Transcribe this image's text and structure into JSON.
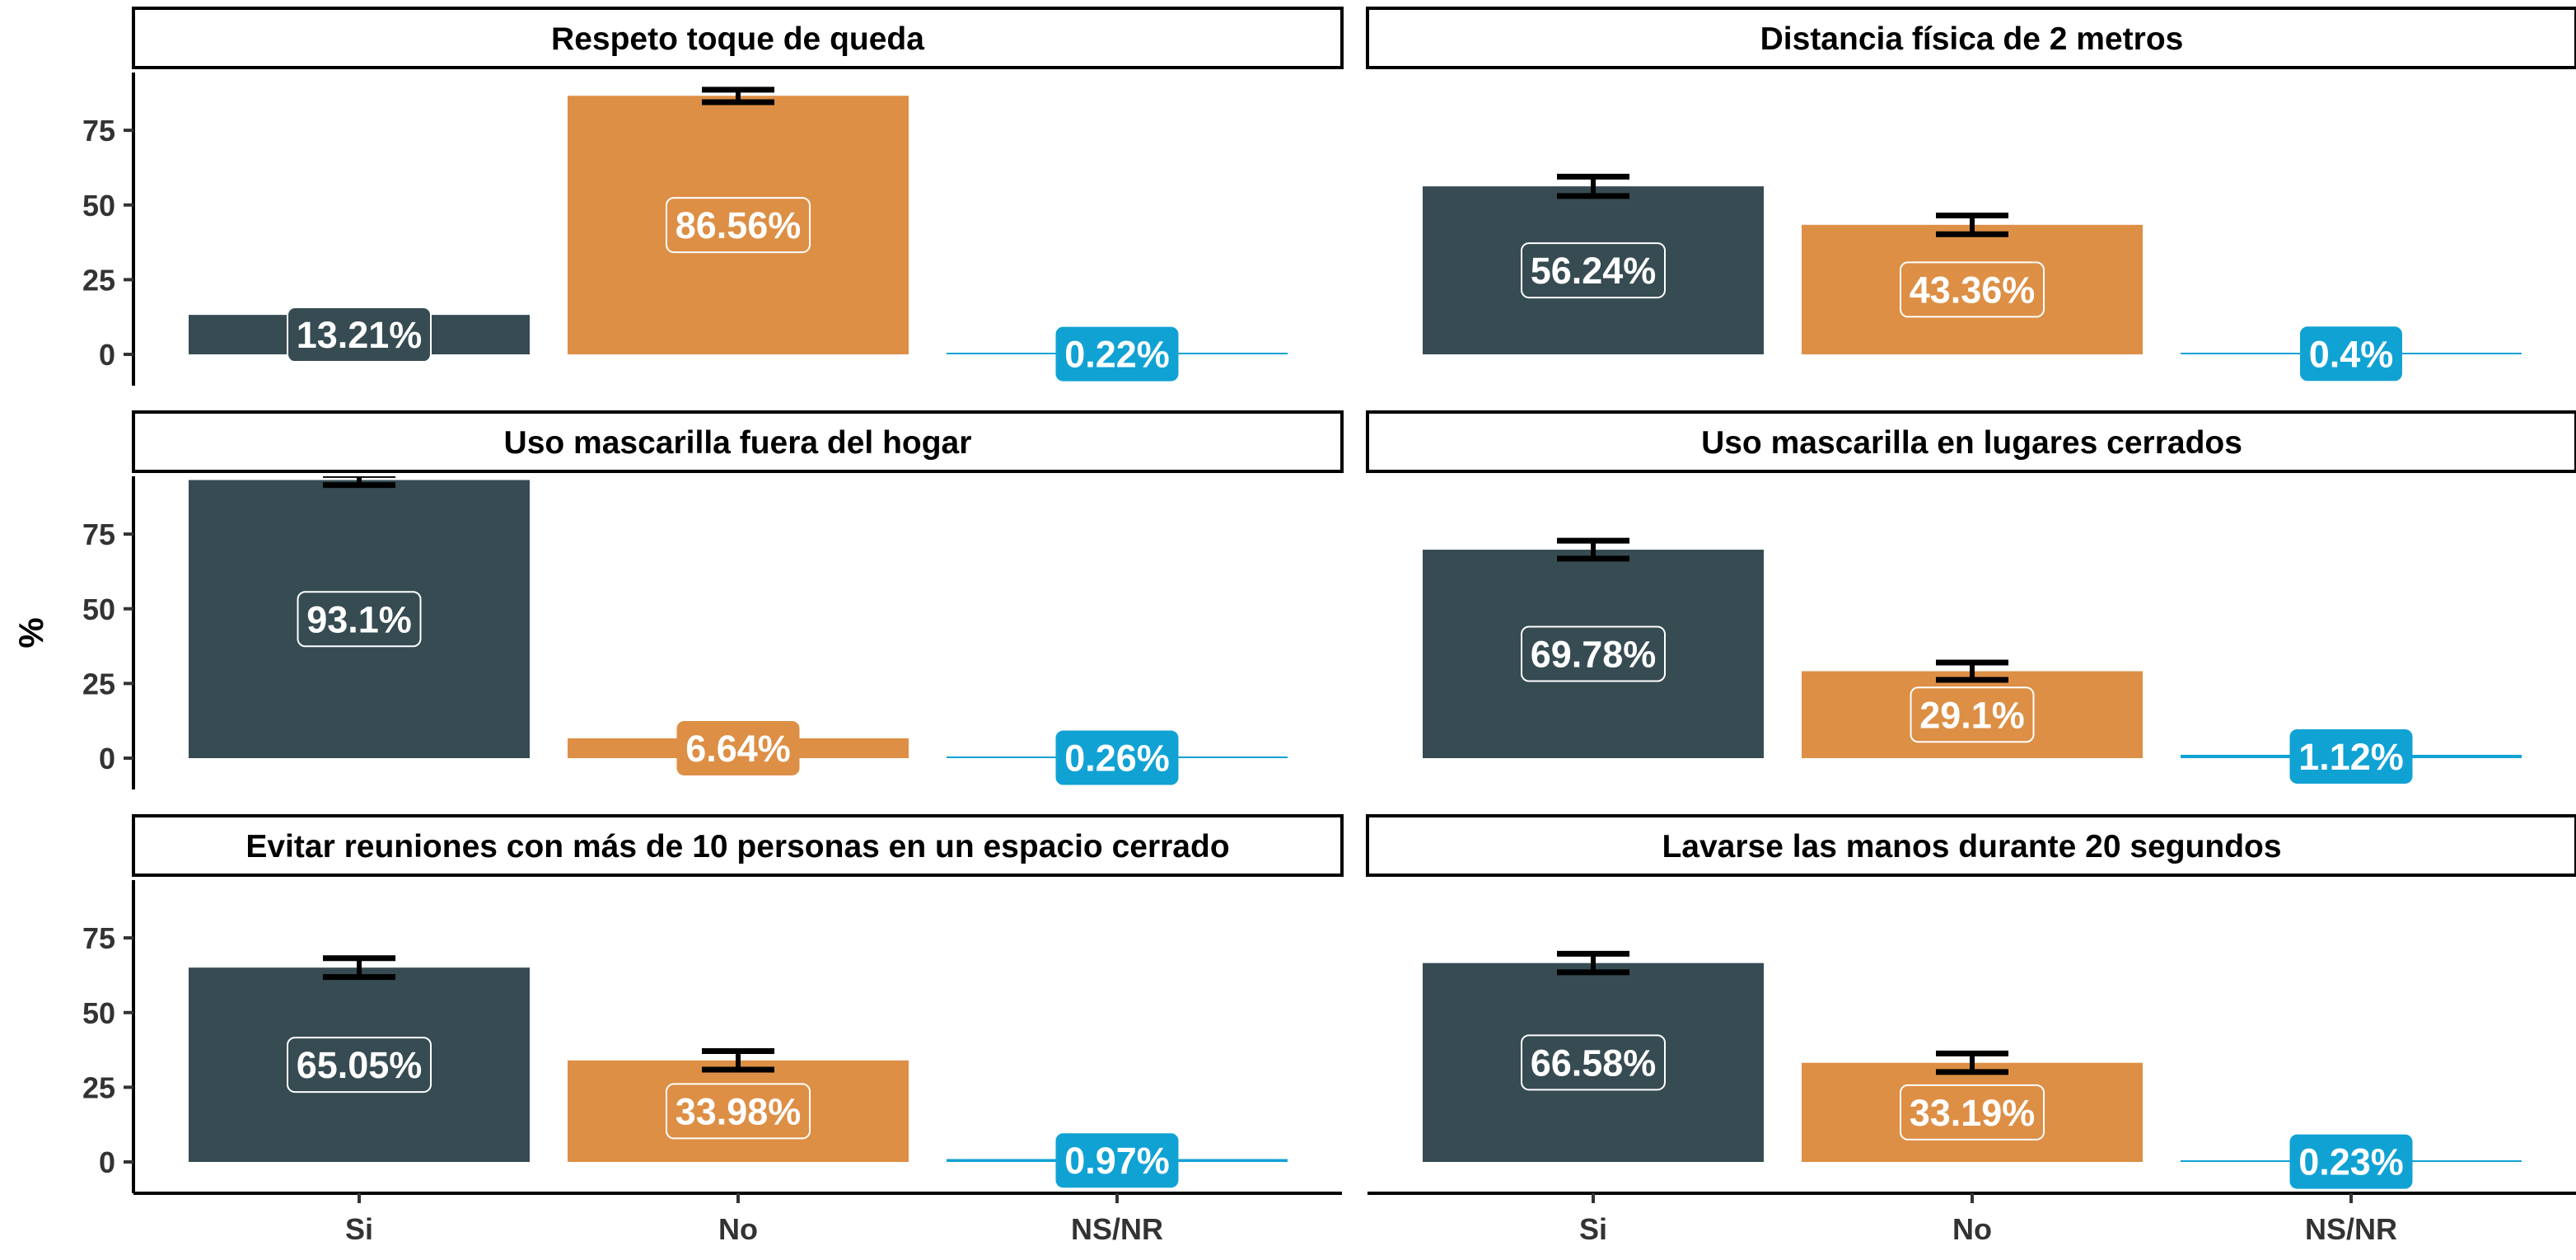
{
  "chart_data": {
    "type": "bar",
    "ylabel": "%",
    "xlabel": "",
    "ylim": [
      0,
      100
    ],
    "yticks": [
      0,
      25,
      50,
      75
    ],
    "categories": [
      "Si",
      "No",
      "NS/NR"
    ],
    "colors": {
      "Si": "#364b52",
      "No": "#dd8f45",
      "NS/NR": "#11a2d4"
    },
    "panels": [
      {
        "title": "Respeto toque de queda",
        "values": [
          13.21,
          86.56,
          0.22
        ],
        "labels": [
          "13.21%",
          "86.56%",
          "0.22%"
        ],
        "err": [
          null,
          [
            84.4,
            88.6
          ],
          null
        ]
      },
      {
        "title": "Distancia física de 2 metros",
        "values": [
          56.24,
          43.36,
          0.4
        ],
        "labels": [
          "56.24%",
          "43.36%",
          "0.4%"
        ],
        "err": [
          [
            53.0,
            59.5
          ],
          [
            40.2,
            46.5
          ],
          null
        ]
      },
      {
        "title": "Uso mascarilla fuera del hogar",
        "values": [
          93.1,
          6.64,
          0.26
        ],
        "labels": [
          "93.1%",
          "6.64%",
          "0.26%"
        ],
        "err": [
          [
            91.4,
            94.8
          ],
          null,
          null
        ]
      },
      {
        "title": "Uso mascarilla en lugares cerrados",
        "values": [
          69.78,
          29.1,
          1.12
        ],
        "labels": [
          "69.78%",
          "29.1%",
          "1.12%"
        ],
        "err": [
          [
            66.8,
            72.8
          ],
          [
            26.2,
            32.0
          ],
          null
        ]
      },
      {
        "title": "Evitar reuniones con más de 10 personas en un espacio cerrado",
        "values": [
          65.05,
          33.98,
          0.97
        ],
        "labels": [
          "65.05%",
          "33.98%",
          "0.97%"
        ],
        "err": [
          [
            61.9,
            68.2
          ],
          [
            30.9,
            37.1
          ],
          null
        ]
      },
      {
        "title": "Lavarse las manos durante 20 segundos",
        "values": [
          66.58,
          33.19,
          0.23
        ],
        "labels": [
          "66.58%",
          "33.19%",
          "0.23%"
        ],
        "err": [
          [
            63.5,
            69.7
          ],
          [
            30.1,
            36.3
          ],
          null
        ]
      }
    ]
  }
}
